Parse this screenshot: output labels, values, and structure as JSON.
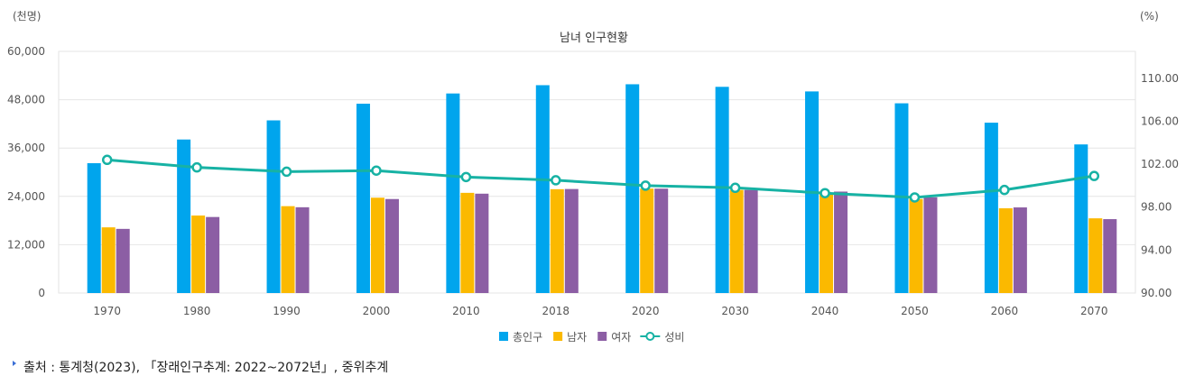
{
  "chart_data": {
    "type": "bar+line",
    "title": "남녀 인구현황",
    "left_unit": "(천명)",
    "right_unit": "(%)",
    "categories": [
      "1970",
      "1980",
      "1990",
      "2000",
      "2010",
      "2018",
      "2020",
      "2030",
      "2040",
      "2050",
      "2060",
      "2070"
    ],
    "left_axis": {
      "min": 0,
      "max": 60000,
      "ticks": [
        "0",
        "12,000",
        "24,000",
        "36,000",
        "48,000",
        "60,000"
      ]
    },
    "right_axis": {
      "min": 90,
      "max": 112.5,
      "ticks": [
        "90.00",
        "94.00",
        "98.00",
        "102.00",
        "106.00",
        "110.00"
      ]
    },
    "series": [
      {
        "name": "총인구",
        "type": "bar",
        "color": "#00a5ed",
        "values": [
          32240,
          38120,
          42870,
          47010,
          49550,
          51610,
          51840,
          51200,
          50060,
          47110,
          42300,
          36900
        ]
      },
      {
        "name": "남자",
        "type": "bar",
        "color": "#fbb900",
        "values": [
          16310,
          19240,
          21570,
          23670,
          24880,
          25780,
          25920,
          25600,
          24870,
          23340,
          21040,
          18550
        ]
      },
      {
        "name": "여자",
        "type": "bar",
        "color": "#8c5ea4",
        "values": [
          15930,
          18880,
          21300,
          23340,
          24670,
          25830,
          25920,
          25600,
          25190,
          23770,
          21260,
          18350
        ]
      },
      {
        "name": "성비",
        "type": "line",
        "axis": "right",
        "color": "#17b2a4",
        "values": [
          102.4,
          101.7,
          101.3,
          101.4,
          100.8,
          100.5,
          100.0,
          99.8,
          99.3,
          98.9,
          99.6,
          100.9
        ]
      }
    ],
    "legend_position": "bottom-center"
  },
  "source_text": "출처 : 통계청(2023), 「장래인구추계: 2022~2072년」, 중위추계"
}
